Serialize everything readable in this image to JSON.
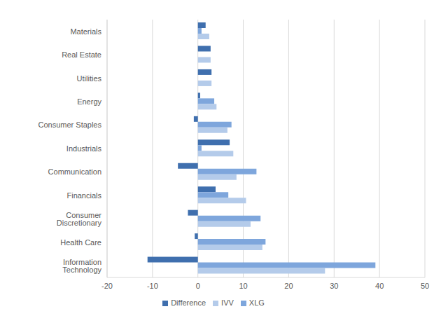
{
  "chart_data": {
    "type": "bar",
    "orientation": "horizontal",
    "categories": [
      "Materials",
      "Real Estate",
      "Utilities",
      "Energy",
      "Consumer Staples",
      "Industrials",
      "Communication",
      "Financials",
      "Consumer Discretionary",
      "Health Care",
      "Information Technology"
    ],
    "series": [
      {
        "name": "Difference",
        "color": "#3f6fae",
        "values": [
          1.7,
          2.8,
          3.0,
          0.5,
          -0.9,
          7.0,
          -4.4,
          3.9,
          -2.2,
          -0.7,
          -11.1
        ]
      },
      {
        "name": "XLG",
        "color": "#7ea6dc",
        "values": [
          0.8,
          0,
          0,
          3.6,
          7.4,
          0.8,
          12.9,
          6.7,
          13.8,
          14.9,
          39.1
        ]
      },
      {
        "name": "IVV",
        "color": "#b4cbea",
        "values": [
          2.5,
          2.8,
          3.0,
          4.1,
          6.5,
          7.8,
          8.5,
          10.6,
          11.6,
          14.2,
          28.0
        ]
      }
    ],
    "xlim": [
      -20,
      50
    ],
    "xticks": [
      -20,
      -10,
      0,
      10,
      20,
      30,
      40,
      50
    ],
    "grid": true,
    "legend": "bottom"
  }
}
